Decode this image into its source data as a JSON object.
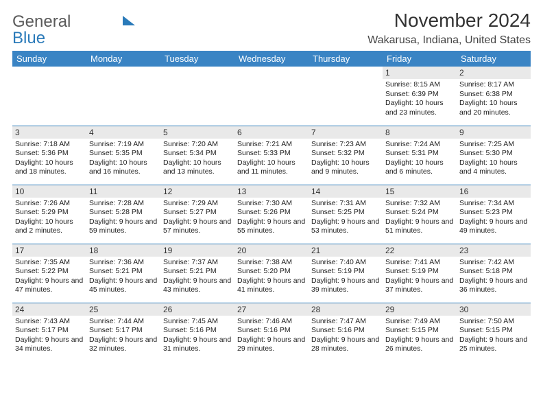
{
  "brand": {
    "word1": "General",
    "word2": "Blue"
  },
  "title": "November 2024",
  "location": "Wakarusa, Indiana, United States",
  "header_bg": "#3a84c4",
  "weekdays": [
    "Sunday",
    "Monday",
    "Tuesday",
    "Wednesday",
    "Thursday",
    "Friday",
    "Saturday"
  ],
  "first_weekday_index": 5,
  "days": [
    {
      "n": "1",
      "sr": "8:15 AM",
      "ss": "6:39 PM",
      "dl": "10 hours and 23 minutes."
    },
    {
      "n": "2",
      "sr": "8:17 AM",
      "ss": "6:38 PM",
      "dl": "10 hours and 20 minutes."
    },
    {
      "n": "3",
      "sr": "7:18 AM",
      "ss": "5:36 PM",
      "dl": "10 hours and 18 minutes."
    },
    {
      "n": "4",
      "sr": "7:19 AM",
      "ss": "5:35 PM",
      "dl": "10 hours and 16 minutes."
    },
    {
      "n": "5",
      "sr": "7:20 AM",
      "ss": "5:34 PM",
      "dl": "10 hours and 13 minutes."
    },
    {
      "n": "6",
      "sr": "7:21 AM",
      "ss": "5:33 PM",
      "dl": "10 hours and 11 minutes."
    },
    {
      "n": "7",
      "sr": "7:23 AM",
      "ss": "5:32 PM",
      "dl": "10 hours and 9 minutes."
    },
    {
      "n": "8",
      "sr": "7:24 AM",
      "ss": "5:31 PM",
      "dl": "10 hours and 6 minutes."
    },
    {
      "n": "9",
      "sr": "7:25 AM",
      "ss": "5:30 PM",
      "dl": "10 hours and 4 minutes."
    },
    {
      "n": "10",
      "sr": "7:26 AM",
      "ss": "5:29 PM",
      "dl": "10 hours and 2 minutes."
    },
    {
      "n": "11",
      "sr": "7:28 AM",
      "ss": "5:28 PM",
      "dl": "9 hours and 59 minutes."
    },
    {
      "n": "12",
      "sr": "7:29 AM",
      "ss": "5:27 PM",
      "dl": "9 hours and 57 minutes."
    },
    {
      "n": "13",
      "sr": "7:30 AM",
      "ss": "5:26 PM",
      "dl": "9 hours and 55 minutes."
    },
    {
      "n": "14",
      "sr": "7:31 AM",
      "ss": "5:25 PM",
      "dl": "9 hours and 53 minutes."
    },
    {
      "n": "15",
      "sr": "7:32 AM",
      "ss": "5:24 PM",
      "dl": "9 hours and 51 minutes."
    },
    {
      "n": "16",
      "sr": "7:34 AM",
      "ss": "5:23 PM",
      "dl": "9 hours and 49 minutes."
    },
    {
      "n": "17",
      "sr": "7:35 AM",
      "ss": "5:22 PM",
      "dl": "9 hours and 47 minutes."
    },
    {
      "n": "18",
      "sr": "7:36 AM",
      "ss": "5:21 PM",
      "dl": "9 hours and 45 minutes."
    },
    {
      "n": "19",
      "sr": "7:37 AM",
      "ss": "5:21 PM",
      "dl": "9 hours and 43 minutes."
    },
    {
      "n": "20",
      "sr": "7:38 AM",
      "ss": "5:20 PM",
      "dl": "9 hours and 41 minutes."
    },
    {
      "n": "21",
      "sr": "7:40 AM",
      "ss": "5:19 PM",
      "dl": "9 hours and 39 minutes."
    },
    {
      "n": "22",
      "sr": "7:41 AM",
      "ss": "5:19 PM",
      "dl": "9 hours and 37 minutes."
    },
    {
      "n": "23",
      "sr": "7:42 AM",
      "ss": "5:18 PM",
      "dl": "9 hours and 36 minutes."
    },
    {
      "n": "24",
      "sr": "7:43 AM",
      "ss": "5:17 PM",
      "dl": "9 hours and 34 minutes."
    },
    {
      "n": "25",
      "sr": "7:44 AM",
      "ss": "5:17 PM",
      "dl": "9 hours and 32 minutes."
    },
    {
      "n": "26",
      "sr": "7:45 AM",
      "ss": "5:16 PM",
      "dl": "9 hours and 31 minutes."
    },
    {
      "n": "27",
      "sr": "7:46 AM",
      "ss": "5:16 PM",
      "dl": "9 hours and 29 minutes."
    },
    {
      "n": "28",
      "sr": "7:47 AM",
      "ss": "5:16 PM",
      "dl": "9 hours and 28 minutes."
    },
    {
      "n": "29",
      "sr": "7:49 AM",
      "ss": "5:15 PM",
      "dl": "9 hours and 26 minutes."
    },
    {
      "n": "30",
      "sr": "7:50 AM",
      "ss": "5:15 PM",
      "dl": "9 hours and 25 minutes."
    }
  ],
  "labels": {
    "sunrise": "Sunrise:",
    "sunset": "Sunset:",
    "daylight": "Daylight:"
  }
}
